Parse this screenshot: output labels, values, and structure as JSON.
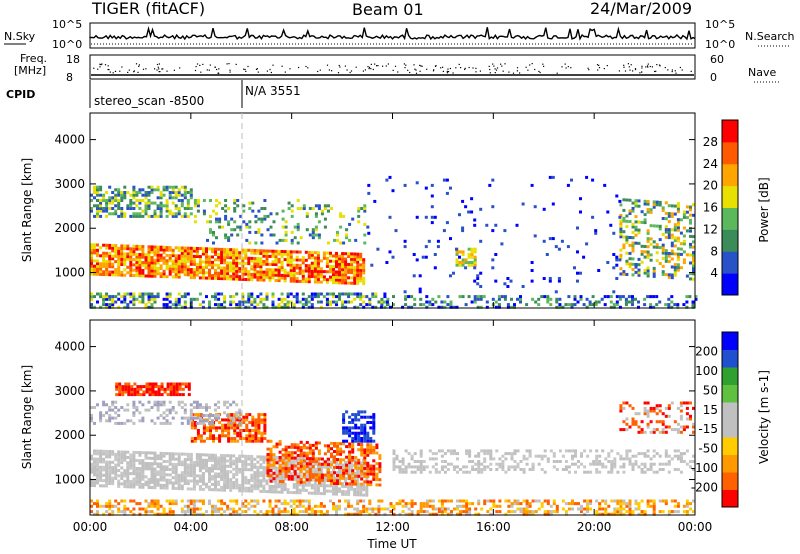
{
  "header": {
    "radar": "TIGER (fitACF)",
    "beam": "Beam 01",
    "date": "24/Mar/2009"
  },
  "panels": {
    "nsky": {
      "left_label": "N.Sky",
      "right_label": "N.Search",
      "left_ticks": [
        "10^5",
        "10^0"
      ],
      "right_ticks": [
        "10^5",
        "10^0"
      ]
    },
    "freq": {
      "left_label_1": "Freq.",
      "left_label_2": "[MHz]",
      "left_ticks": [
        "18",
        "8"
      ],
      "right_label": "Nave",
      "right_ticks": [
        "60",
        "0"
      ]
    },
    "cpid": {
      "label": "CPID",
      "seg1": "stereo_scan -8500",
      "seg2": "N/A 3551"
    }
  },
  "colors": {
    "power": [
      "#0000ff",
      "#2a52c8",
      "#3c8c5a",
      "#5cb85c",
      "#e8e000",
      "#ffa500",
      "#ff5a00",
      "#ff0000"
    ],
    "velocity": [
      "#ff0000",
      "#ff6000",
      "#ff9900",
      "#ffcc00",
      "#c0c0c0",
      "#c0c0c0",
      "#60c040",
      "#30a030",
      "#2050d0",
      "#0000ff"
    ]
  },
  "chart_data": [
    {
      "type": "heatmap",
      "ylabel": "Slant Range [km]",
      "xlabel": "",
      "x_ticks": [
        "00:00",
        "04:00",
        "08:00",
        "12:00",
        "16:00",
        "20:00",
        "00:00"
      ],
      "x_range_hours": [
        0,
        24
      ],
      "ylim": [
        200,
        4600
      ],
      "y_ticks": [
        1000,
        2000,
        3000,
        4000
      ],
      "colorbar": {
        "label": "Power [dB]",
        "ticks": [
          "28",
          "24",
          "20",
          "16",
          "12",
          "8",
          "4"
        ],
        "range": [
          0,
          32
        ]
      }
    },
    {
      "type": "heatmap",
      "ylabel": "Slant Range [km]",
      "xlabel": "Time UT",
      "x_ticks": [
        "00:00",
        "04:00",
        "08:00",
        "12:00",
        "16:00",
        "20:00",
        "00:00"
      ],
      "x_range_hours": [
        0,
        24
      ],
      "ylim": [
        200,
        4600
      ],
      "y_ticks": [
        1000,
        2000,
        3000,
        4000
      ],
      "colorbar": {
        "label": "Velocity [m s-1]",
        "ticks": [
          "200",
          "100",
          "50",
          "15",
          "-15",
          "-50",
          "-100",
          "-200"
        ]
      }
    }
  ]
}
